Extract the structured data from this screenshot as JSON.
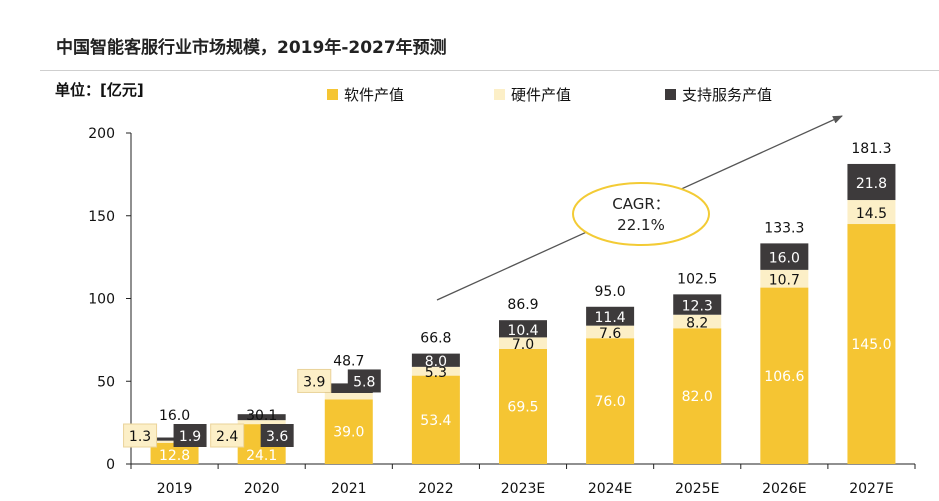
{
  "title": "中国智能客服行业市场规模，2019年-2027年预测",
  "unit_label": "单位：[亿元]",
  "colors": {
    "software": "#F5C533",
    "hardware": "#FCEFC7",
    "service": "#3D3A3B",
    "cagr_border": "#F3CB35",
    "arrow": "#555555"
  },
  "chart_data": {
    "type": "bar",
    "stacked": true,
    "categories": [
      "2019",
      "2020",
      "2021",
      "2022",
      "2023E",
      "2024E",
      "2025E",
      "2026E",
      "2027E"
    ],
    "series": [
      {
        "name": "软件产值",
        "values": [
          12.8,
          24.1,
          39.0,
          53.4,
          69.5,
          76.0,
          82.0,
          106.6,
          145.0
        ]
      },
      {
        "name": "硬件产值",
        "values": [
          1.3,
          2.4,
          3.9,
          5.3,
          7.0,
          7.6,
          8.2,
          10.7,
          14.5
        ]
      },
      {
        "name": "支持服务产值",
        "values": [
          1.9,
          3.6,
          5.8,
          8.0,
          10.4,
          11.4,
          12.3,
          16.0,
          21.8
        ]
      }
    ],
    "totals": [
      "16.0",
      "30.1",
      "48.7",
      "66.8",
      "86.9",
      "95.0",
      "102.5",
      "133.3",
      "181.3"
    ],
    "yticks": [
      0,
      50,
      100,
      150,
      200
    ],
    "ylim": [
      0,
      200
    ],
    "legend_position": "top",
    "annotation": "CAGR：22.1%"
  }
}
